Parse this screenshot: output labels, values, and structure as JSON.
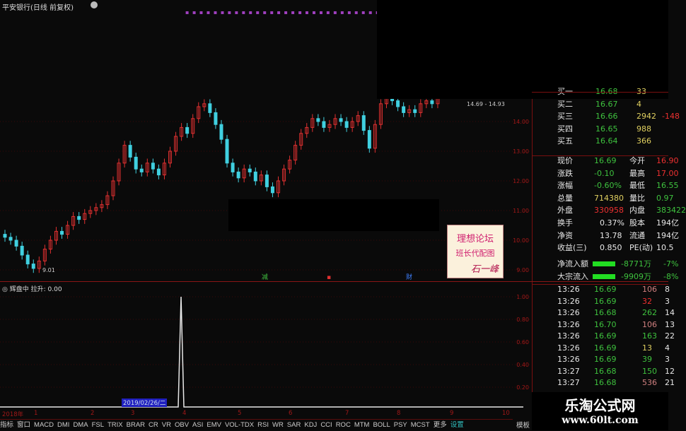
{
  "title": "平安银行(日线 前复权)",
  "price_axis": [
    "14.00",
    "13.00",
    "12.00",
    "11.00",
    "10.00",
    "9.00"
  ],
  "chart": {
    "low_label": "9.01",
    "high_label": "14.69 - 14.93",
    "markers": [
      {
        "text": "减",
        "color": "#40c040"
      },
      {
        "text": "▪",
        "color": "#e03030"
      },
      {
        "text": "财",
        "color": "#4080ff"
      }
    ],
    "closes": [
      10.1,
      10.0,
      9.8,
      9.5,
      9.2,
      9.05,
      9.3,
      9.7,
      10.0,
      10.3,
      10.2,
      10.5,
      10.8,
      10.7,
      10.9,
      11.0,
      11.1,
      11.2,
      11.5,
      12.0,
      12.6,
      13.2,
      12.8,
      12.4,
      12.3,
      12.6,
      12.4,
      12.2,
      12.6,
      13.0,
      13.5,
      13.8,
      13.6,
      14.1,
      14.5,
      14.6,
      14.3,
      13.9,
      13.4,
      12.6,
      12.3,
      12.1,
      12.4,
      12.3,
      12.0,
      12.2,
      11.8,
      11.6,
      12.0,
      12.4,
      12.7,
      13.2,
      13.6,
      13.8,
      14.1,
      14.0,
      13.8,
      13.9,
      14.1,
      14.0,
      13.8,
      14.0,
      14.2,
      13.7,
      13.1,
      13.9,
      14.6,
      14.8,
      14.7,
      14.5,
      14.3,
      14.4,
      14.3,
      14.6,
      14.7,
      14.6,
      14.8
    ]
  },
  "indicator": {
    "name": "辉盘中",
    "value_label": "拉升: 0.00",
    "axis": [
      "1.00",
      "0.80",
      "0.60",
      "0.40",
      "0.20"
    ]
  },
  "date_axis": [
    "2018年",
    "1",
    "2",
    "3",
    "4",
    "5",
    "6",
    "7",
    "8",
    "9",
    "10"
  ],
  "cursor_date": "2019/02/26/二",
  "tabs": [
    "指标",
    "窗口",
    "MACD",
    "DMI",
    "DMA",
    "FSL",
    "TRIX",
    "BRAR",
    "CR",
    "VR",
    "OBV",
    "ASI",
    "EMV",
    "VOL-TDX",
    "RSI",
    "WR",
    "SAR",
    "KDJ",
    "CCI",
    "ROC",
    "MTM",
    "BOLL",
    "PSY",
    "MCST",
    "更多",
    "设置"
  ],
  "tab_right": "模板",
  "bids": [
    {
      "label": "买一",
      "price": "16.68",
      "vol": "33"
    },
    {
      "label": "买二",
      "price": "16.67",
      "vol": "4"
    },
    {
      "label": "买三",
      "price": "16.66",
      "vol": "2942",
      "chg": "-148"
    },
    {
      "label": "买四",
      "price": "16.65",
      "vol": "988"
    },
    {
      "label": "买五",
      "price": "16.64",
      "vol": "366"
    }
  ],
  "quote": [
    {
      "l1": "现价",
      "v1": "16.69",
      "c1": "g",
      "l2": "今开",
      "v2": "16.90",
      "c2": "r"
    },
    {
      "l1": "涨跌",
      "v1": "-0.10",
      "c1": "g",
      "l2": "最高",
      "v2": "17.00",
      "c2": "r"
    },
    {
      "l1": "涨幅",
      "v1": "-0.60%",
      "c1": "g",
      "l2": "最低",
      "v2": "16.55",
      "c2": "g"
    },
    {
      "l1": "总量",
      "v1": "714380",
      "c1": "y",
      "l2": "量比",
      "v2": "0.97",
      "c2": "g"
    },
    {
      "l1": "外盘",
      "v1": "330958",
      "c1": "r",
      "l2": "内盘",
      "v2": "383422",
      "c2": "g"
    }
  ],
  "fund": [
    {
      "l1": "换手",
      "v1": "0.37%",
      "l2": "股本",
      "v2": "194亿"
    },
    {
      "l1": "净资",
      "v1": "13.78",
      "l2": "流通",
      "v2": "194亿"
    },
    {
      "l1": "收益(三)",
      "v1": "0.850",
      "l2": "PE(动)",
      "v2": "10.5"
    }
  ],
  "flows": [
    {
      "label": "净流入额",
      "value": "-8771万",
      "pct": "-7%"
    },
    {
      "label": "大宗流入",
      "value": "-9909万",
      "pct": "-8%"
    }
  ],
  "ticks": [
    {
      "t": "13:26",
      "p": "16.69",
      "v": "106",
      "vc": "p",
      "x": "8"
    },
    {
      "t": "13:26",
      "p": "16.69",
      "v": "32",
      "vc": "r",
      "x": "3"
    },
    {
      "t": "13:26",
      "p": "16.68",
      "v": "262",
      "vc": "g",
      "x": "14"
    },
    {
      "t": "13:26",
      "p": "16.70",
      "v": "106",
      "vc": "p",
      "x": "13"
    },
    {
      "t": "13:26",
      "p": "16.69",
      "v": "163",
      "vc": "g",
      "x": "22"
    },
    {
      "t": "13:26",
      "p": "16.69",
      "v": "13",
      "vc": "y",
      "x": "4"
    },
    {
      "t": "13:26",
      "p": "16.69",
      "v": "39",
      "vc": "g",
      "x": "3"
    },
    {
      "t": "13:27",
      "p": "16.68",
      "v": "150",
      "vc": "g",
      "x": "12"
    },
    {
      "t": "13:27",
      "p": "16.68",
      "v": "536",
      "vc": "p",
      "x": "21"
    }
  ],
  "forum": {
    "line1": "理想论坛",
    "line2": "班长代配图",
    "sign": "石一峰"
  },
  "watermark": {
    "name": "乐淘公式网",
    "url": "www.60lt.com"
  },
  "colors": {
    "up": "#e03030",
    "down": "#40d0e0",
    "grid": "#5a0d0d",
    "bg": "#0a0a0a"
  }
}
